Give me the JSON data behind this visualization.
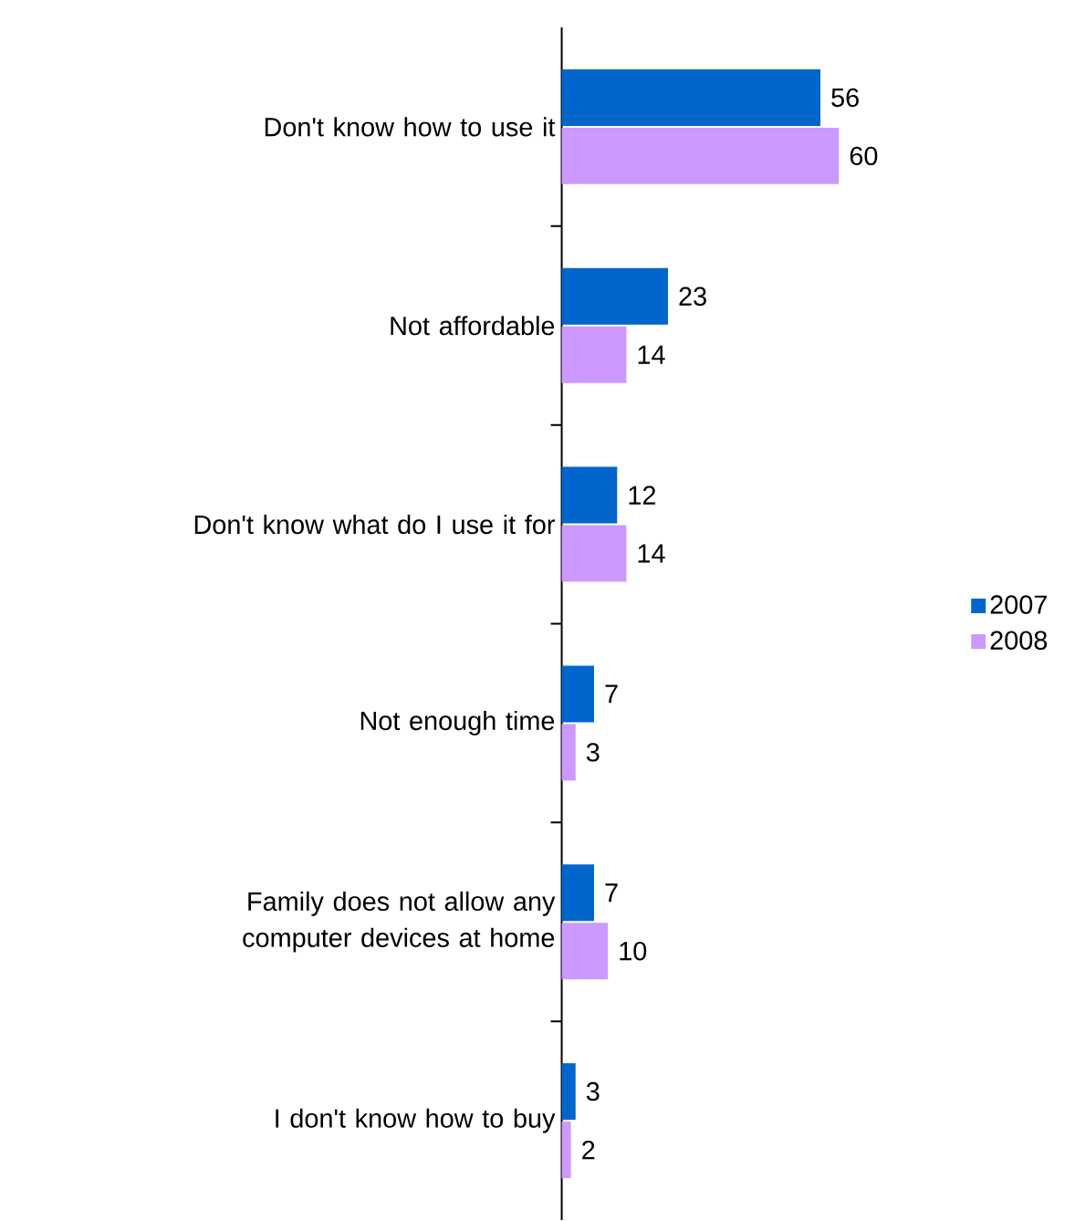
{
  "chart_data": {
    "type": "bar",
    "orientation": "horizontal",
    "categories": [
      "Don't know how to use it",
      "Not affordable",
      "Don't know what do I use it for",
      "Not enough time",
      "Family does not allow any computer devices at home",
      "I don't know how to buy"
    ],
    "series": [
      {
        "name": "2007",
        "color": "#0066cc",
        "values": [
          56,
          23,
          12,
          7,
          7,
          3
        ]
      },
      {
        "name": "2008",
        "color": "#cc99ff",
        "values": [
          60,
          14,
          14,
          3,
          10,
          2
        ]
      }
    ],
    "data_labels": true,
    "legend": "right"
  }
}
